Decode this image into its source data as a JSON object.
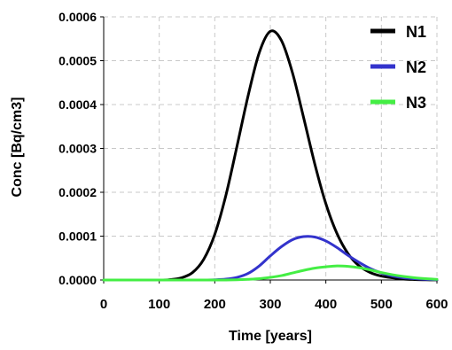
{
  "chart_data": {
    "type": "line",
    "title": "",
    "xlabel": "Time [years]",
    "ylabel": "Conc [Bq/cm3]",
    "xlim": [
      0,
      600
    ],
    "ylim": [
      0,
      0.0006
    ],
    "grid": true,
    "legend_position": "top-right",
    "x_ticks": [
      0,
      100,
      200,
      300,
      400,
      500,
      600
    ],
    "x_tick_labels": [
      "0",
      "100",
      "200",
      "300",
      "400",
      "500",
      "600"
    ],
    "y_ticks": [
      0,
      0.0001,
      0.0002,
      0.0003,
      0.0004,
      0.0005,
      0.0006
    ],
    "y_tick_labels": [
      "0.0000",
      "0.0001",
      "0.0002",
      "0.0003",
      "0.0004",
      "0.0005",
      "0.0006"
    ],
    "x": [
      0,
      100,
      120,
      140,
      160,
      180,
      200,
      220,
      240,
      260,
      280,
      300,
      320,
      340,
      360,
      380,
      400,
      420,
      440,
      460,
      480,
      500,
      520,
      540,
      560,
      580,
      600
    ],
    "series": [
      {
        "name": "N1",
        "color": "#000000",
        "values": [
          0,
          0,
          1e-06,
          5e-06,
          1.7e-05,
          4.7e-05,
          0.000104,
          0.000193,
          0.000305,
          0.00042,
          0.000518,
          0.000567,
          0.000546,
          0.000472,
          0.00037,
          0.000265,
          0.000174,
          0.000106,
          6e-05,
          3.2e-05,
          1.7e-05,
          9e-06,
          5e-06,
          2e-06,
          1e-06,
          5e-07,
          2e-07
        ]
      },
      {
        "name": "N2",
        "color": "#3333cc",
        "values": [
          0,
          0,
          0,
          0,
          0,
          0,
          5e-07,
          2e-06,
          6e-06,
          1.5e-05,
          3.2e-05,
          5.5e-05,
          7.6e-05,
          9.2e-05,
          9.9e-05,
          9.8e-05,
          8.9e-05,
          7.4e-05,
          5.6e-05,
          4e-05,
          2.6e-05,
          1.6e-05,
          9e-06,
          5e-06,
          3e-06,
          1.5e-06,
          7e-07
        ]
      },
      {
        "name": "N3",
        "color": "#44ee44",
        "values": [
          0,
          0,
          0,
          0,
          0,
          0,
          0,
          0,
          5e-07,
          1.5e-06,
          3e-06,
          6e-06,
          1e-05,
          1.6e-05,
          2.2e-05,
          2.7e-05,
          3e-05,
          3.2e-05,
          3.1e-05,
          2.8e-05,
          2.3e-05,
          1.7e-05,
          1.2e-05,
          8e-06,
          5e-06,
          3e-06,
          1.5e-06
        ]
      }
    ]
  }
}
